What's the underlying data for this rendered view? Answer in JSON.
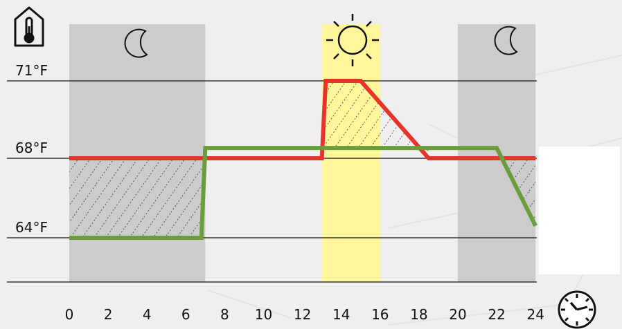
{
  "chart_data": {
    "type": "line",
    "title": "",
    "xlabel": "",
    "ylabel": "",
    "x_ticks": [
      "0",
      "2",
      "4",
      "6",
      "8",
      "10",
      "12",
      "14",
      "16",
      "18",
      "20",
      "22",
      "24"
    ],
    "y_ticks": [
      {
        "value": 71,
        "label": "71°F"
      },
      {
        "value": 68,
        "label": "68°F"
      },
      {
        "value": 64,
        "label": "64°F"
      }
    ],
    "xlim": [
      0,
      24
    ],
    "bands": [
      {
        "kind": "night",
        "from": 0,
        "to": 7,
        "color": "#cccccc"
      },
      {
        "kind": "sun",
        "from": 13,
        "to": 16,
        "color": "#fff59a"
      },
      {
        "kind": "night",
        "from": 20,
        "to": 24,
        "color": "#cccccc"
      }
    ],
    "series": [
      {
        "color": "#e8332b",
        "x": [
          0,
          13,
          13.2,
          15,
          18.5,
          24
        ],
        "y": [
          68,
          68,
          71,
          71,
          68,
          68
        ]
      },
      {
        "color": "#6a9e3a",
        "x": [
          0,
          6.8,
          7,
          13,
          13.5,
          22,
          24
        ],
        "y": [
          64,
          64,
          68.4,
          68.4,
          68.4,
          68.4,
          64.6
        ]
      }
    ],
    "icons": [
      "house-thermometer-icon",
      "moon-icon",
      "sun-icon",
      "clock-icon"
    ]
  }
}
